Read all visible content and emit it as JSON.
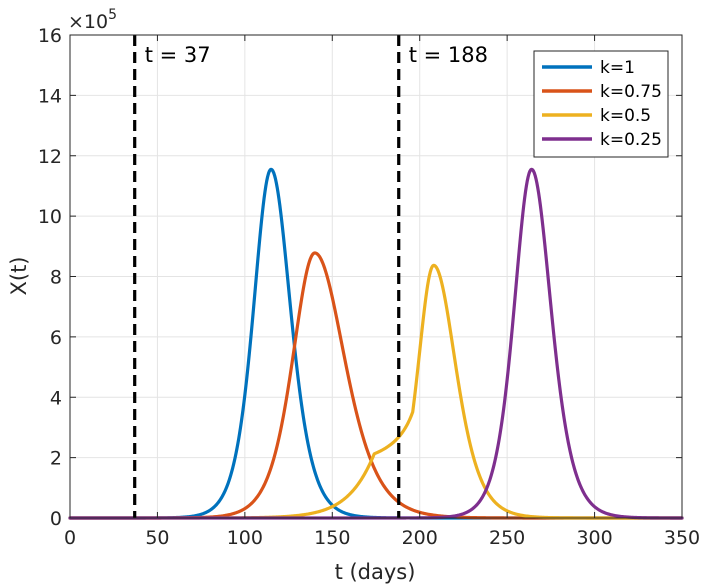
{
  "chart_data": {
    "type": "line",
    "xlabel": "t (days)",
    "ylabel": "X(t)",
    "xlim": [
      0,
      350
    ],
    "ylim": [
      0,
      16
    ],
    "x_ticks": [
      0,
      50,
      100,
      150,
      200,
      250,
      300,
      350
    ],
    "y_ticks": [
      0,
      2,
      4,
      6,
      8,
      10,
      12,
      14,
      16
    ],
    "y_scale_base": "10",
    "y_scale_exp": "5",
    "grid": true,
    "legend_position": "top-right",
    "vertical_lines": [
      {
        "x": 37,
        "label": "t = 37"
      },
      {
        "x": 188,
        "label": "t = 188"
      }
    ],
    "series": [
      {
        "name": "k=1",
        "color": "#0072BD",
        "peak_t": 115,
        "peak_value": 11.55,
        "rise_width": 13.5,
        "fall_width": 15.0
      },
      {
        "name": "k=0.75",
        "color": "#D95319",
        "peak_t": 140,
        "peak_value": 8.78,
        "rise_width": 17.0,
        "fall_width": 23.0
      },
      {
        "name": "k=0.5",
        "color": "#EDB120",
        "peak_t": 208,
        "peak_value": 8.37,
        "rise_width": 12.0,
        "fall_width": 17.0,
        "early_rise_width": 26.0
      },
      {
        "name": "k=0.25",
        "color": "#7E2F8E",
        "peak_t": 264,
        "peak_value": 11.55,
        "rise_width": 13.5,
        "fall_width": 15.0
      }
    ]
  }
}
